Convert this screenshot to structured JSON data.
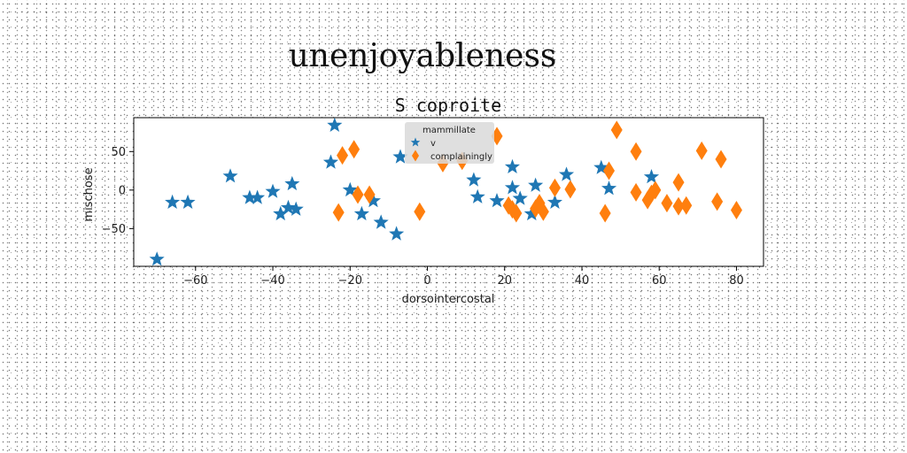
{
  "figure": {
    "title": "unenjoyableness"
  },
  "chart_data": {
    "type": "scatter",
    "title": "S coproite",
    "xlabel": "dorsointercostal",
    "ylabel": "mischose",
    "xlim": [
      -76,
      87
    ],
    "ylim": [
      -99,
      94
    ],
    "xticks": [
      -60,
      -40,
      -20,
      0,
      20,
      40,
      60,
      80
    ],
    "yticks": [
      -50,
      0,
      50
    ],
    "grid": false,
    "legend": {
      "title": "mammillate",
      "location": "upper center"
    },
    "series": [
      {
        "name": "v",
        "marker": "star",
        "color": "#1f77b4",
        "points": [
          [
            -70,
            -90
          ],
          [
            -66,
            -16
          ],
          [
            -62,
            -16
          ],
          [
            -51,
            18
          ],
          [
            -46,
            -10
          ],
          [
            -44,
            -10
          ],
          [
            -40,
            -2
          ],
          [
            -38,
            -31
          ],
          [
            -36,
            -23
          ],
          [
            -35,
            8
          ],
          [
            -34,
            -25
          ],
          [
            -25,
            36
          ],
          [
            -24,
            84
          ],
          [
            -20,
            0
          ],
          [
            -17,
            -31
          ],
          [
            -14,
            -14
          ],
          [
            -12,
            -42
          ],
          [
            -8,
            -57
          ],
          [
            -7,
            43
          ],
          [
            12,
            13
          ],
          [
            13,
            -9
          ],
          [
            18,
            -14
          ],
          [
            22,
            30
          ],
          [
            22,
            3
          ],
          [
            24,
            -11
          ],
          [
            27,
            -31
          ],
          [
            28,
            6
          ],
          [
            33,
            -16
          ],
          [
            36,
            20
          ],
          [
            45,
            29
          ],
          [
            47,
            2
          ],
          [
            58,
            17
          ]
        ]
      },
      {
        "name": "complainingly",
        "marker": "thin_diamond",
        "color": "#ff7f0e",
        "points": [
          [
            -23,
            -29
          ],
          [
            -22,
            45
          ],
          [
            -19,
            53
          ],
          [
            -18,
            -6
          ],
          [
            -15,
            -6
          ],
          [
            -2,
            -28
          ],
          [
            4,
            35
          ],
          [
            9,
            38
          ],
          [
            18,
            70
          ],
          [
            21,
            -20
          ],
          [
            22,
            -25
          ],
          [
            23,
            -30
          ],
          [
            28,
            -24
          ],
          [
            29,
            -17
          ],
          [
            30,
            -28
          ],
          [
            33,
            3
          ],
          [
            37,
            1
          ],
          [
            46,
            -30
          ],
          [
            47,
            25
          ],
          [
            49,
            78
          ],
          [
            54,
            50
          ],
          [
            54,
            -3
          ],
          [
            57,
            -13
          ],
          [
            58,
            -5
          ],
          [
            59,
            0
          ],
          [
            62,
            -17
          ],
          [
            65,
            10
          ],
          [
            65,
            -21
          ],
          [
            67,
            -20
          ],
          [
            71,
            51
          ],
          [
            75,
            -15
          ],
          [
            76,
            40
          ],
          [
            80,
            -26
          ]
        ]
      }
    ]
  }
}
